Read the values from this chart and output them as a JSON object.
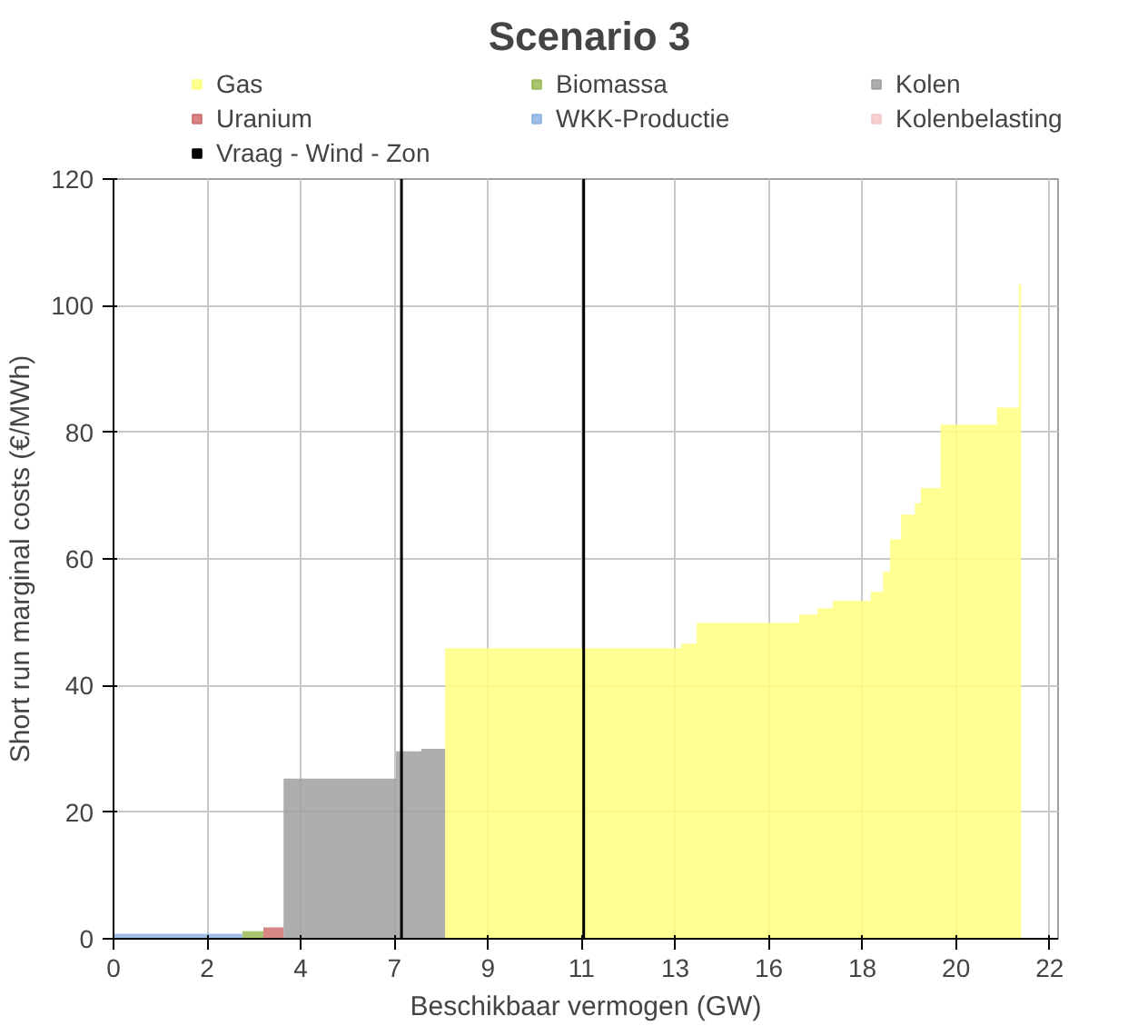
{
  "chart_data": {
    "type": "area",
    "title": "Scenario 3",
    "xlabel": "Beschikbaar vermogen (GW)",
    "ylabel": "Short run marginal costs (€/MWh)",
    "xlim": [
      0,
      22.5
    ],
    "ylim": [
      0,
      120
    ],
    "xticks": [
      0,
      {
        "value": 2.23,
        "label": "2"
      },
      {
        "value": 4.46,
        "label": "4"
      },
      {
        "value": 6.69,
        "label": "7"
      },
      {
        "value": 8.92,
        "label": "9"
      },
      {
        "value": 11.15,
        "label": "11"
      },
      {
        "value": 13.38,
        "label": "13"
      },
      {
        "value": 15.61,
        "label": "16"
      },
      {
        "value": 17.84,
        "label": "18"
      },
      {
        "value": 20.07,
        "label": "20"
      },
      {
        "value": 22.3,
        "label": "22"
      }
    ],
    "yticks": [
      0,
      20,
      40,
      60,
      80,
      100,
      120
    ],
    "grid": true,
    "legend": "top",
    "series": [
      {
        "name": "Gas",
        "color": "#ffff80",
        "x": [
          7.9,
          7.9,
          13.53,
          13.53,
          13.89,
          13.89,
          16.33,
          16.33,
          16.77,
          16.77,
          17.13,
          17.13,
          18.04,
          18.04,
          18.33,
          18.33,
          18.5,
          18.5,
          18.76,
          18.76,
          19.09,
          19.09,
          19.23,
          19.23,
          19.7,
          19.7,
          21.04,
          21.04,
          21.57,
          21.57,
          21.62,
          21.62
        ],
        "values": [
          0,
          45.9,
          45.9,
          46.6,
          46.6,
          49.9,
          49.9,
          51.2,
          51.2,
          52.2,
          52.2,
          53.4,
          53.4,
          54.8,
          54.8,
          58.0,
          58.0,
          63.1,
          63.1,
          67.0,
          67.0,
          68.8,
          68.8,
          71.2,
          71.2,
          81.2,
          81.2,
          83.9,
          83.9,
          103.4,
          103.4,
          0
        ]
      },
      {
        "name": "Biomassa",
        "color": "#9bbb59",
        "x": [
          3.07,
          3.07,
          3.57,
          3.57
        ],
        "values": [
          0,
          1.2,
          1.2,
          0
        ]
      },
      {
        "name": "Kolen",
        "color": "#a0a0a0",
        "x": [
          4.05,
          4.05,
          6.73,
          6.73,
          7.33,
          7.33,
          7.9,
          7.9
        ],
        "values": [
          0,
          25.3,
          25.3,
          29.6,
          29.6,
          30.0,
          30.0,
          0
        ]
      },
      {
        "name": "Uranium",
        "color": "#d07070",
        "x": [
          3.57,
          3.57,
          4.05,
          4.05
        ],
        "values": [
          0,
          1.8,
          1.8,
          0
        ]
      },
      {
        "name": "WKK-Productie",
        "color": "#8eb4e3",
        "x": [
          0,
          0,
          3.07,
          3.07
        ],
        "values": [
          0,
          0.8,
          0.8,
          0
        ]
      },
      {
        "name": "Kolenbelasting",
        "color": "#f2c8c8"
      }
    ],
    "ref_lines": [
      {
        "axis": "x",
        "value": 6.86,
        "label": "Vraag - Wind - Zon",
        "color": "#000000"
      },
      {
        "axis": "x",
        "value": 11.2,
        "color": "#000000"
      }
    ]
  }
}
